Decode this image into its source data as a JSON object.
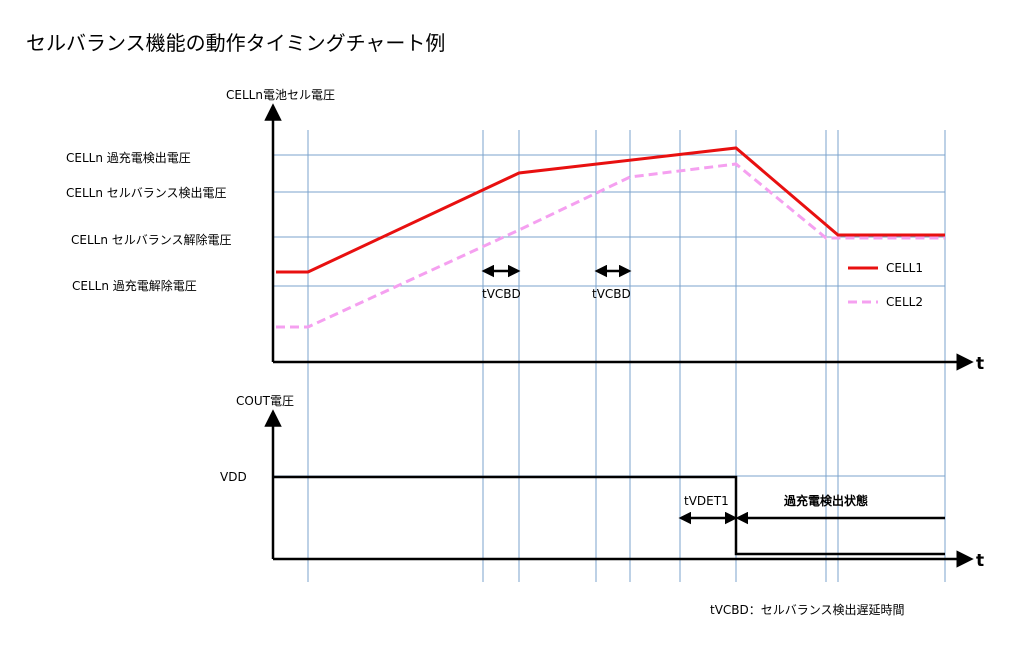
{
  "title": "セルバランス機能の動作タイミングチャート例",
  "top_chart": {
    "y_axis_label": "CELLn電池セル電圧",
    "x_axis_label": "t",
    "levels": [
      "CELLn 過充電検出電圧",
      "CELLn セルバランス検出電圧",
      "CELLn セルバランス解除電圧",
      "CELLn 過充電解除電圧"
    ],
    "delay_labels": [
      "tVCBD",
      "tVCBD"
    ],
    "legend": [
      {
        "name": "CELL1",
        "color": "#e81010",
        "style": "solid"
      },
      {
        "name": "CELL2",
        "color": "#f5a0f0",
        "style": "dashed"
      }
    ]
  },
  "bottom_chart": {
    "y_axis_label": "COUT電圧",
    "x_axis_label": "t",
    "level_label": "VDD",
    "delay_label": "tVDET1",
    "state_label": "過充電検出状態"
  },
  "footnote": "tVCBD：セルバランス検出遅延時間",
  "colors": {
    "grid": "#7ba3cc",
    "cell1": "#e81010",
    "cell2": "#f5a0f0",
    "axis": "#000000"
  }
}
